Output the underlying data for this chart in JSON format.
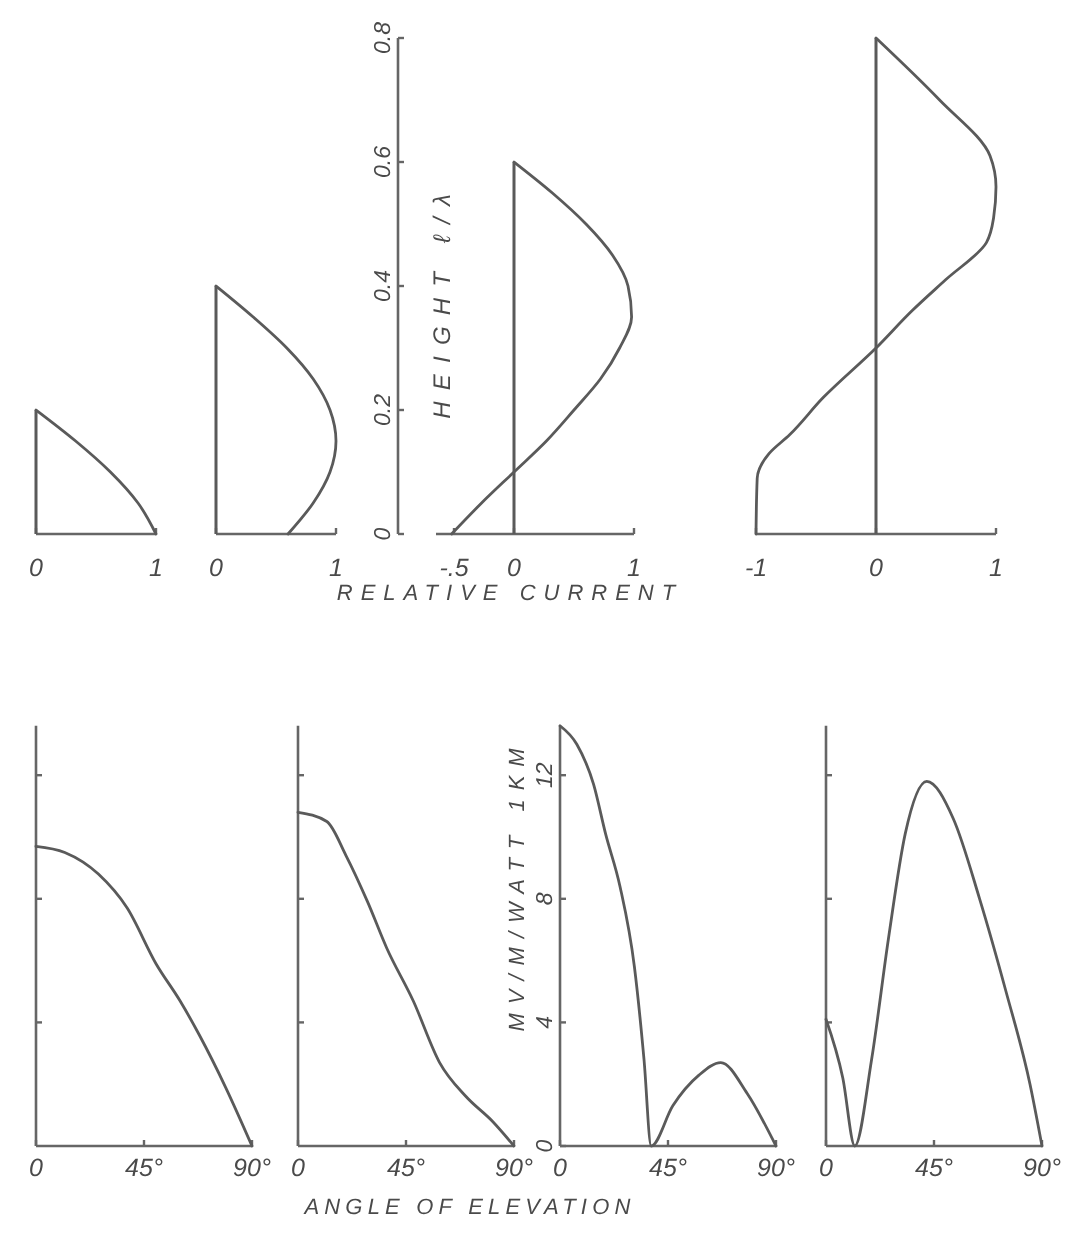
{
  "chart_data": [
    {
      "type": "line",
      "xlim": [
        0,
        1
      ],
      "xticks": [
        0,
        1
      ],
      "ylim": [
        0,
        0.8
      ],
      "tick_labels": "x",
      "series": [
        {
          "type": "bar",
          "color": "#5a5a5a",
          "x": [
            0
          ],
          "values": [
            0.2
          ]
        },
        {
          "color": "#5a5a5a",
          "x": [
            1,
            0.85,
            0.62,
            0.33,
            0
          ],
          "values": [
            0,
            0.05,
            0.1,
            0.15,
            0.2
          ]
        }
      ]
    },
    {
      "type": "line",
      "xlim": [
        0,
        1
      ],
      "xticks": [
        0,
        1
      ],
      "ylim": [
        0,
        0.8
      ],
      "tick_labels": "x",
      "series": [
        {
          "type": "bar",
          "color": "#5a5a5a",
          "x": [
            0
          ],
          "values": [
            0.4
          ]
        },
        {
          "color": "#5a5a5a",
          "x": [
            0.6,
            0.81,
            0.95,
            1,
            0.95,
            0.81,
            0.59,
            0.31,
            0
          ],
          "values": [
            0,
            0.05,
            0.1,
            0.15,
            0.2,
            0.25,
            0.3,
            0.35,
            0.4
          ]
        }
      ]
    },
    {
      "type": "line",
      "xlabel": "RELATIVE CURRENT",
      "ylabel": "HEIGHT ℓ/λ",
      "xlim": [
        -0.65,
        1
      ],
      "xticks": [
        {
          "value": -0.5,
          "label": "-.5"
        },
        0,
        1
      ],
      "ylim": [
        0,
        0.8
      ],
      "yticks": [
        0,
        0.2,
        0.4,
        0.6,
        0.8
      ],
      "series": [
        {
          "type": "bar",
          "color": "#5a5a5a",
          "x": [
            0
          ],
          "values": [
            0.6
          ]
        },
        {
          "color": "#5a5a5a",
          "x": [
            -0.52,
            -0.27,
            0,
            0.27,
            0.5,
            0.72,
            0.88,
            0.98,
            0.95,
            0.82,
            0.6,
            0.32,
            0
          ],
          "values": [
            0,
            0.05,
            0.1,
            0.15,
            0.2,
            0.25,
            0.3,
            0.35,
            0.4,
            0.45,
            0.5,
            0.55,
            0.6
          ]
        }
      ]
    },
    {
      "type": "line",
      "xlim": [
        -1,
        1
      ],
      "xticks": [
        -1,
        0,
        1
      ],
      "ylim": [
        0,
        0.8
      ],
      "tick_labels": "x",
      "series": [
        {
          "type": "bar",
          "color": "#5a5a5a",
          "x": [
            0
          ],
          "values": [
            0.8
          ]
        },
        {
          "color": "#5a5a5a",
          "x": [
            -1,
            -0.99,
            -0.89,
            -0.72,
            -0.44,
            0,
            0.3,
            0.58,
            0.92,
            0.98,
            1,
            0.95,
            0.53,
            0
          ],
          "values": [
            0,
            0.09,
            0.13,
            0.16,
            0.22,
            0.3,
            0.36,
            0.41,
            0.47,
            0.51,
            0.56,
            0.61,
            0.7,
            0.8
          ]
        }
      ]
    },
    {
      "type": "line",
      "xlim": [
        0,
        90
      ],
      "xticks": [
        0,
        {
          "value": 45,
          "label": "45°"
        },
        {
          "value": 90,
          "label": "90°"
        }
      ],
      "ylim": [
        0,
        13.6
      ],
      "yticks": [
        {
          "value": 4,
          "label": null
        },
        {
          "value": 8,
          "label": null
        },
        {
          "value": 12,
          "label": null
        }
      ],
      "tick_labels": "x",
      "series": [
        {
          "color": "#5a5a5a",
          "x": [
            0,
            12,
            26,
            38,
            50,
            60,
            68,
            79,
            90
          ],
          "values": [
            9.7,
            9.5,
            8.8,
            7.7,
            5.9,
            4.7,
            3.6,
            1.9,
            0
          ]
        }
      ]
    },
    {
      "type": "line",
      "xlabel": "ANGLE OF ELEVATION",
      "xlim": [
        0,
        90
      ],
      "xticks": [
        0,
        {
          "value": 45,
          "label": "45°"
        },
        {
          "value": 90,
          "label": "90°"
        }
      ],
      "ylim": [
        0,
        13.6
      ],
      "yticks": [
        {
          "value": 4,
          "label": null
        },
        {
          "value": 8,
          "label": null
        },
        {
          "value": 12,
          "label": null
        }
      ],
      "tick_labels": "x",
      "series": [
        {
          "color": "#5a5a5a",
          "x": [
            0,
            12,
            20,
            29,
            37,
            48,
            59,
            70,
            81,
            90
          ],
          "values": [
            10.8,
            10.5,
            9.4,
            7.9,
            6.4,
            4.7,
            2.7,
            1.6,
            0.8,
            0
          ]
        }
      ]
    },
    {
      "type": "line",
      "ylabel": "MV/M/WATT 1KM",
      "xlim": [
        0,
        90
      ],
      "xticks": [
        0,
        {
          "value": 45,
          "label": "45°"
        },
        {
          "value": 90,
          "label": "90°"
        }
      ],
      "ylim": [
        0,
        13.6
      ],
      "yticks": [
        0,
        4,
        8,
        12
      ],
      "series": [
        {
          "color": "#5a5a5a",
          "x": [
            0,
            7,
            14,
            19,
            25,
            31,
            35,
            38,
            47,
            58,
            67,
            78,
            90
          ],
          "values": [
            13.6,
            13,
            11.7,
            10.1,
            8.4,
            5.8,
            2.8,
            0,
            1.3,
            2.3,
            2.7,
            1.7,
            0
          ]
        }
      ]
    },
    {
      "type": "line",
      "xlim": [
        0,
        90
      ],
      "xticks": [
        0,
        {
          "value": 45,
          "label": "45°"
        },
        {
          "value": 90,
          "label": "90°"
        }
      ],
      "ylim": [
        0,
        13.6
      ],
      "yticks": [
        {
          "value": 4,
          "label": null
        },
        {
          "value": 8,
          "label": null
        },
        {
          "value": 12,
          "label": null
        }
      ],
      "tick_labels": "x",
      "series": [
        {
          "color": "#5a5a5a",
          "x": [
            0,
            7,
            12,
            19,
            26,
            33,
            42,
            53,
            64,
            75,
            85,
            90
          ],
          "values": [
            4.1,
            2.2,
            0,
            2.8,
            6.7,
            10.1,
            11.8,
            10.6,
            8,
            5,
            2,
            0
          ]
        }
      ]
    }
  ]
}
